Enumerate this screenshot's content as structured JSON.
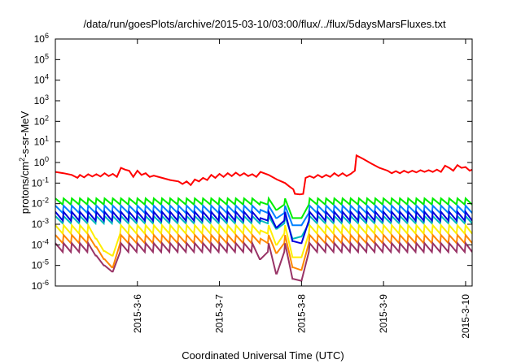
{
  "chart_data": {
    "type": "line",
    "title": "/data/run/goesPlots/archive/2015-03-10/03:00/flux/../flux/5daysMarsFluxes.txt",
    "xlabel": "Coordinated Universal Time (UTC)",
    "ylabel_parts": {
      "base": "protons/cm",
      "sup": "2",
      "rest": "-s-sr-MeV"
    },
    "x_range_days": [
      0,
      5.08
    ],
    "x_ticks": [
      {
        "label": "2015-3-6",
        "day": 1.0
      },
      {
        "label": "2015-3-7",
        "day": 2.0
      },
      {
        "label": "2015-3-8",
        "day": 3.0
      },
      {
        "label": "2015-3-9",
        "day": 4.0
      },
      {
        "label": "2015-3-10",
        "day": 5.0
      }
    ],
    "y_scale": "log",
    "ylim": [
      1e-06,
      1000000.0
    ],
    "y_ticks": [
      {
        "base": "10",
        "exp": "-6"
      },
      {
        "base": "10",
        "exp": "-5"
      },
      {
        "base": "10",
        "exp": "-4"
      },
      {
        "base": "10",
        "exp": "-3"
      },
      {
        "base": "10",
        "exp": "-2"
      },
      {
        "base": "10",
        "exp": "-1"
      },
      {
        "base": "10",
        "exp": "0"
      },
      {
        "base": "10",
        "exp": "1"
      },
      {
        "base": "10",
        "exp": "2"
      },
      {
        "base": "10",
        "exp": "3"
      },
      {
        "base": "10",
        "exp": "4"
      },
      {
        "base": "10",
        "exp": "5"
      },
      {
        "base": "10",
        "exp": "6"
      }
    ],
    "series": [
      {
        "color": "#ff0000",
        "points": [
          [
            0.0,
            0.35
          ],
          [
            0.1,
            0.3
          ],
          [
            0.2,
            0.25
          ],
          [
            0.27,
            0.18
          ],
          [
            0.3,
            0.25
          ],
          [
            0.35,
            0.19
          ],
          [
            0.4,
            0.27
          ],
          [
            0.45,
            0.21
          ],
          [
            0.5,
            0.27
          ],
          [
            0.55,
            0.21
          ],
          [
            0.6,
            0.3
          ],
          [
            0.65,
            0.22
          ],
          [
            0.7,
            0.28
          ],
          [
            0.75,
            0.2
          ],
          [
            0.8,
            0.55
          ],
          [
            0.85,
            0.45
          ],
          [
            0.9,
            0.4
          ],
          [
            0.95,
            0.2
          ],
          [
            1.0,
            0.4
          ],
          [
            1.05,
            0.25
          ],
          [
            1.1,
            0.3
          ],
          [
            1.15,
            0.2
          ],
          [
            1.2,
            0.23
          ],
          [
            1.3,
            0.18
          ],
          [
            1.4,
            0.14
          ],
          [
            1.5,
            0.12
          ],
          [
            1.55,
            0.09
          ],
          [
            1.6,
            0.12
          ],
          [
            1.65,
            0.08
          ],
          [
            1.7,
            0.15
          ],
          [
            1.75,
            0.12
          ],
          [
            1.8,
            0.18
          ],
          [
            1.85,
            0.14
          ],
          [
            1.9,
            0.25
          ],
          [
            1.95,
            0.18
          ],
          [
            2.0,
            0.28
          ],
          [
            2.05,
            0.2
          ],
          [
            2.1,
            0.3
          ],
          [
            2.15,
            0.22
          ],
          [
            2.2,
            0.32
          ],
          [
            2.25,
            0.23
          ],
          [
            2.3,
            0.3
          ],
          [
            2.35,
            0.22
          ],
          [
            2.4,
            0.27
          ],
          [
            2.45,
            0.2
          ],
          [
            2.5,
            0.35
          ],
          [
            2.6,
            0.25
          ],
          [
            2.7,
            0.15
          ],
          [
            2.8,
            0.1
          ],
          [
            2.85,
            0.07
          ],
          [
            2.9,
            0.05
          ],
          [
            2.92,
            0.03
          ],
          [
            2.98,
            0.028
          ],
          [
            3.02,
            0.03
          ],
          [
            3.05,
            0.18
          ],
          [
            3.1,
            0.22
          ],
          [
            3.15,
            0.18
          ],
          [
            3.2,
            0.25
          ],
          [
            3.25,
            0.19
          ],
          [
            3.3,
            0.25
          ],
          [
            3.35,
            0.2
          ],
          [
            3.4,
            0.3
          ],
          [
            3.45,
            0.22
          ],
          [
            3.5,
            0.3
          ],
          [
            3.55,
            0.22
          ],
          [
            3.6,
            0.28
          ],
          [
            3.65,
            0.4
          ],
          [
            3.67,
            2.2
          ],
          [
            3.75,
            1.5
          ],
          [
            3.85,
            0.9
          ],
          [
            3.95,
            0.55
          ],
          [
            4.05,
            0.4
          ],
          [
            4.1,
            0.3
          ],
          [
            4.15,
            0.38
          ],
          [
            4.2,
            0.3
          ],
          [
            4.25,
            0.4
          ],
          [
            4.3,
            0.32
          ],
          [
            4.35,
            0.4
          ],
          [
            4.4,
            0.33
          ],
          [
            4.45,
            0.42
          ],
          [
            4.5,
            0.35
          ],
          [
            4.55,
            0.42
          ],
          [
            4.6,
            0.35
          ],
          [
            4.65,
            0.45
          ],
          [
            4.7,
            0.35
          ],
          [
            4.75,
            0.7
          ],
          [
            4.8,
            0.55
          ],
          [
            4.85,
            0.4
          ],
          [
            4.9,
            0.75
          ],
          [
            4.95,
            0.55
          ],
          [
            5.0,
            0.6
          ],
          [
            5.05,
            0.4
          ],
          [
            5.08,
            0.45
          ]
        ]
      },
      {
        "color": "#00ee00",
        "sawtooth": {
          "peak": 0.018,
          "trough": 0.009
        },
        "dips": [
          [
            2.5,
            0.012
          ],
          [
            2.7,
            0.005
          ],
          [
            2.9,
            0.002
          ],
          [
            2.98,
            0.002
          ]
        ]
      },
      {
        "color": "#0080ff",
        "sawtooth": {
          "peak": 0.008,
          "trough": 0.0035
        },
        "dips": [
          [
            2.5,
            0.005
          ],
          [
            2.7,
            0.002
          ],
          [
            2.9,
            0.0009
          ],
          [
            2.98,
            0.0009
          ]
        ]
      },
      {
        "color": "#00bbbb",
        "sawtooth": {
          "peak": 0.0025,
          "trough": 0.0011
        },
        "dips": [
          [
            2.5,
            0.0015
          ],
          [
            2.7,
            0.0006
          ],
          [
            2.9,
            0.0002
          ],
          [
            2.98,
            0.00025
          ]
        ]
      },
      {
        "color": "#0000dd",
        "sawtooth": {
          "peak": 0.004,
          "trough": 0.0015
        },
        "dips": [
          [
            2.5,
            0.002
          ],
          [
            2.7,
            0.0007
          ],
          [
            2.9,
            0.00015
          ],
          [
            2.98,
            0.00012
          ]
        ]
      },
      {
        "color": "#ffee00",
        "sawtooth": {
          "peak": 0.0009,
          "trough": 0.00035
        },
        "dips": [
          [
            0.5,
            0.0002
          ],
          [
            0.6,
            5e-05
          ],
          [
            0.68,
            3e-05
          ],
          [
            2.5,
            0.0005
          ],
          [
            2.7,
            0.0001
          ],
          [
            2.9,
            2.5e-05
          ],
          [
            2.98,
            2.5e-05
          ]
        ]
      },
      {
        "color": "#ff8800",
        "sawtooth": {
          "peak": 0.0003,
          "trough": 0.00012
        },
        "dips": [
          [
            0.5,
            8e-05
          ],
          [
            0.6,
            2e-05
          ],
          [
            0.68,
            8e-06
          ],
          [
            2.5,
            0.0002
          ],
          [
            2.7,
            4e-05
          ],
          [
            2.9,
            8e-06
          ],
          [
            2.98,
            6e-06
          ]
        ]
      },
      {
        "color": "#993366",
        "sawtooth": {
          "peak": 0.00012,
          "trough": 4.5e-05
        },
        "dips": [
          [
            0.5,
            3e-05
          ],
          [
            0.6,
            1e-05
          ],
          [
            0.68,
            5e-06
          ],
          [
            2.5,
            2e-05
          ],
          [
            2.7,
            4e-06
          ],
          [
            2.9,
            2.2e-06
          ],
          [
            2.98,
            1.8e-06
          ]
        ]
      }
    ]
  }
}
